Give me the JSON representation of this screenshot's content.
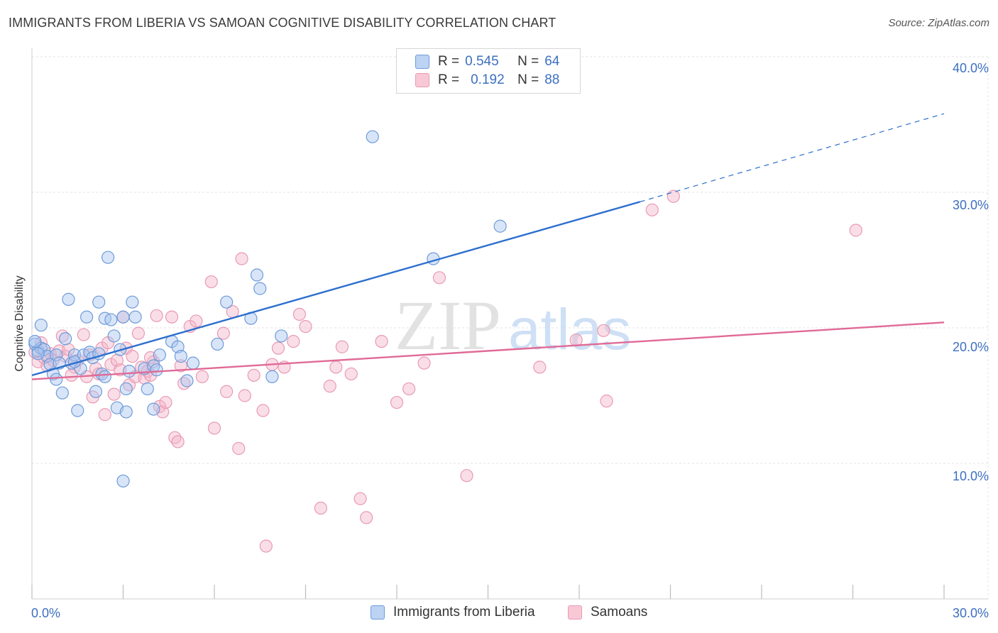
{
  "title": "IMMIGRANTS FROM LIBERIA VS SAMOAN COGNITIVE DISABILITY CORRELATION CHART",
  "source": "Source: ZipAtlas.com",
  "watermark": {
    "zip": "ZIP",
    "atlas": "atlas"
  },
  "colors": {
    "blue_fill": "#a9c6f0",
    "blue_stroke": "#6e9bd9",
    "blue_line": "#2c6fce",
    "pink_fill": "#f5b6ca",
    "pink_stroke": "#e99ab4",
    "pink_line": "#e06a96",
    "tick_text": "#3d6fc0",
    "grid": "#e3e3e3"
  },
  "legend": {
    "series": [
      {
        "r_label": "R =",
        "r_value": "0.545",
        "n_label": "N =",
        "n_value": "64"
      },
      {
        "r_label": "R =",
        "r_value": "0.192",
        "n_label": "N =",
        "n_value": "88"
      }
    ]
  },
  "chart_data": {
    "type": "scatter",
    "title": "IMMIGRANTS FROM LIBERIA VS SAMOAN COGNITIVE DISABILITY CORRELATION CHART",
    "xlabel": "",
    "ylabel": "Cognitive Disability",
    "xlim": [
      0,
      30
    ],
    "ylim": [
      0,
      40
    ],
    "x_ticks": [
      0,
      3,
      6,
      9,
      12,
      15,
      18,
      21,
      24,
      27,
      30
    ],
    "x_tick_labels": [
      {
        "value": 0,
        "label": "0.0%"
      },
      {
        "value": 30,
        "label": "30.0%"
      }
    ],
    "y_ticks": [
      {
        "value": 10,
        "label": "10.0%"
      },
      {
        "value": 20,
        "label": "20.0%"
      },
      {
        "value": 30,
        "label": "30.0%"
      },
      {
        "value": 40,
        "label": "40.0%"
      }
    ],
    "grid": true,
    "legend_position": "top-center",
    "series": [
      {
        "name": "Immigrants from Liberia",
        "color": "#a9c6f0",
        "trend": {
          "x0": 0,
          "y0": 16.5,
          "x1": 20,
          "y1": 29.3,
          "dashed_to_x": 30,
          "dashed_to_y": 35.8
        },
        "points": [
          [
            0.1,
            18.8
          ],
          [
            0.2,
            18.3
          ],
          [
            0.3,
            18.5
          ],
          [
            0.3,
            20.2
          ],
          [
            0.4,
            18.4
          ],
          [
            0.5,
            17.9
          ],
          [
            0.6,
            17.3
          ],
          [
            0.7,
            16.6
          ],
          [
            0.8,
            18.0
          ],
          [
            0.8,
            16.2
          ],
          [
            0.9,
            17.4
          ],
          [
            1.0,
            15.2
          ],
          [
            1.1,
            19.2
          ],
          [
            1.2,
            22.1
          ],
          [
            1.3,
            17.4
          ],
          [
            1.4,
            18.0
          ],
          [
            1.5,
            13.9
          ],
          [
            1.6,
            17.0
          ],
          [
            1.7,
            18.0
          ],
          [
            1.8,
            20.8
          ],
          [
            1.9,
            18.2
          ],
          [
            2.0,
            17.8
          ],
          [
            2.1,
            15.3
          ],
          [
            2.2,
            18.1
          ],
          [
            2.2,
            21.9
          ],
          [
            2.3,
            16.6
          ],
          [
            2.4,
            16.4
          ],
          [
            2.4,
            20.7
          ],
          [
            2.5,
            25.2
          ],
          [
            2.6,
            20.6
          ],
          [
            2.7,
            19.4
          ],
          [
            2.8,
            14.1
          ],
          [
            2.9,
            18.4
          ],
          [
            3.0,
            20.8
          ],
          [
            3.1,
            15.5
          ],
          [
            3.1,
            13.8
          ],
          [
            3.2,
            16.8
          ],
          [
            3.3,
            21.9
          ],
          [
            3.4,
            20.8
          ],
          [
            3.7,
            17.0
          ],
          [
            3.8,
            15.5
          ],
          [
            4.0,
            17.2
          ],
          [
            4.0,
            14.0
          ],
          [
            4.2,
            18.0
          ],
          [
            4.6,
            19.0
          ],
          [
            4.8,
            18.6
          ],
          [
            4.9,
            17.9
          ],
          [
            5.1,
            16.1
          ],
          [
            5.3,
            17.4
          ],
          [
            6.1,
            18.8
          ],
          [
            6.4,
            21.9
          ],
          [
            7.2,
            20.7
          ],
          [
            7.4,
            23.9
          ],
          [
            7.5,
            22.9
          ],
          [
            7.9,
            16.4
          ],
          [
            8.2,
            19.4
          ],
          [
            11.2,
            34.1
          ],
          [
            13.2,
            25.1
          ],
          [
            15.4,
            27.5
          ],
          [
            3.0,
            8.7
          ],
          [
            0.1,
            19.0
          ],
          [
            0.2,
            18.1
          ],
          [
            1.4,
            17.5
          ],
          [
            4.1,
            16.9
          ]
        ]
      },
      {
        "name": "Samoans",
        "color": "#f5b6ca",
        "trend": {
          "x0": 0,
          "y0": 16.2,
          "x1": 30,
          "y1": 20.4
        },
        "points": [
          [
            0.1,
            18.2
          ],
          [
            0.2,
            17.5
          ],
          [
            0.3,
            18.9
          ],
          [
            0.4,
            17.8
          ],
          [
            0.5,
            17.2
          ],
          [
            0.6,
            18.1
          ],
          [
            0.7,
            17.6
          ],
          [
            0.9,
            18.3
          ],
          [
            1.0,
            19.4
          ],
          [
            1.1,
            17.9
          ],
          [
            1.2,
            18.4
          ],
          [
            1.4,
            17.1
          ],
          [
            1.5,
            17.6
          ],
          [
            1.7,
            19.5
          ],
          [
            1.8,
            16.4
          ],
          [
            1.9,
            18.0
          ],
          [
            2.0,
            14.9
          ],
          [
            2.1,
            17.0
          ],
          [
            2.2,
            16.6
          ],
          [
            2.3,
            18.5
          ],
          [
            2.4,
            13.6
          ],
          [
            2.5,
            18.9
          ],
          [
            2.6,
            17.3
          ],
          [
            2.7,
            15.1
          ],
          [
            2.8,
            17.6
          ],
          [
            2.9,
            16.9
          ],
          [
            3.0,
            20.8
          ],
          [
            3.1,
            18.5
          ],
          [
            3.2,
            15.8
          ],
          [
            3.3,
            17.9
          ],
          [
            3.4,
            16.4
          ],
          [
            3.5,
            19.6
          ],
          [
            3.6,
            17.1
          ],
          [
            3.7,
            16.3
          ],
          [
            3.8,
            16.8
          ],
          [
            3.9,
            16.5
          ],
          [
            4.0,
            17.5
          ],
          [
            4.1,
            20.9
          ],
          [
            4.2,
            14.2
          ],
          [
            4.3,
            13.8
          ],
          [
            4.4,
            14.5
          ],
          [
            4.6,
            20.8
          ],
          [
            4.7,
            11.9
          ],
          [
            4.8,
            11.6
          ],
          [
            4.9,
            17.2
          ],
          [
            5.0,
            15.9
          ],
          [
            5.2,
            20.1
          ],
          [
            5.4,
            20.5
          ],
          [
            5.6,
            16.4
          ],
          [
            5.9,
            23.4
          ],
          [
            6.0,
            12.6
          ],
          [
            6.3,
            19.6
          ],
          [
            6.4,
            15.3
          ],
          [
            6.6,
            21.2
          ],
          [
            6.8,
            11.1
          ],
          [
            6.9,
            25.1
          ],
          [
            7.0,
            15.0
          ],
          [
            7.3,
            16.5
          ],
          [
            7.6,
            13.9
          ],
          [
            7.9,
            17.3
          ],
          [
            8.1,
            18.5
          ],
          [
            8.3,
            17.1
          ],
          [
            8.6,
            19.0
          ],
          [
            8.8,
            21.0
          ],
          [
            9.0,
            20.1
          ],
          [
            9.5,
            6.7
          ],
          [
            9.8,
            15.7
          ],
          [
            10.0,
            17.1
          ],
          [
            10.2,
            18.6
          ],
          [
            10.5,
            16.6
          ],
          [
            10.8,
            7.4
          ],
          [
            11.0,
            6.0
          ],
          [
            11.5,
            19.0
          ],
          [
            12.0,
            14.5
          ],
          [
            12.4,
            15.5
          ],
          [
            12.9,
            17.4
          ],
          [
            13.4,
            23.7
          ],
          [
            14.3,
            9.1
          ],
          [
            16.7,
            17.1
          ],
          [
            17.9,
            19.1
          ],
          [
            18.8,
            19.8
          ],
          [
            18.9,
            14.6
          ],
          [
            20.4,
            28.7
          ],
          [
            21.1,
            29.7
          ],
          [
            27.1,
            27.2
          ],
          [
            7.7,
            3.9
          ],
          [
            3.9,
            17.8
          ],
          [
            1.3,
            16.5
          ]
        ]
      }
    ]
  }
}
